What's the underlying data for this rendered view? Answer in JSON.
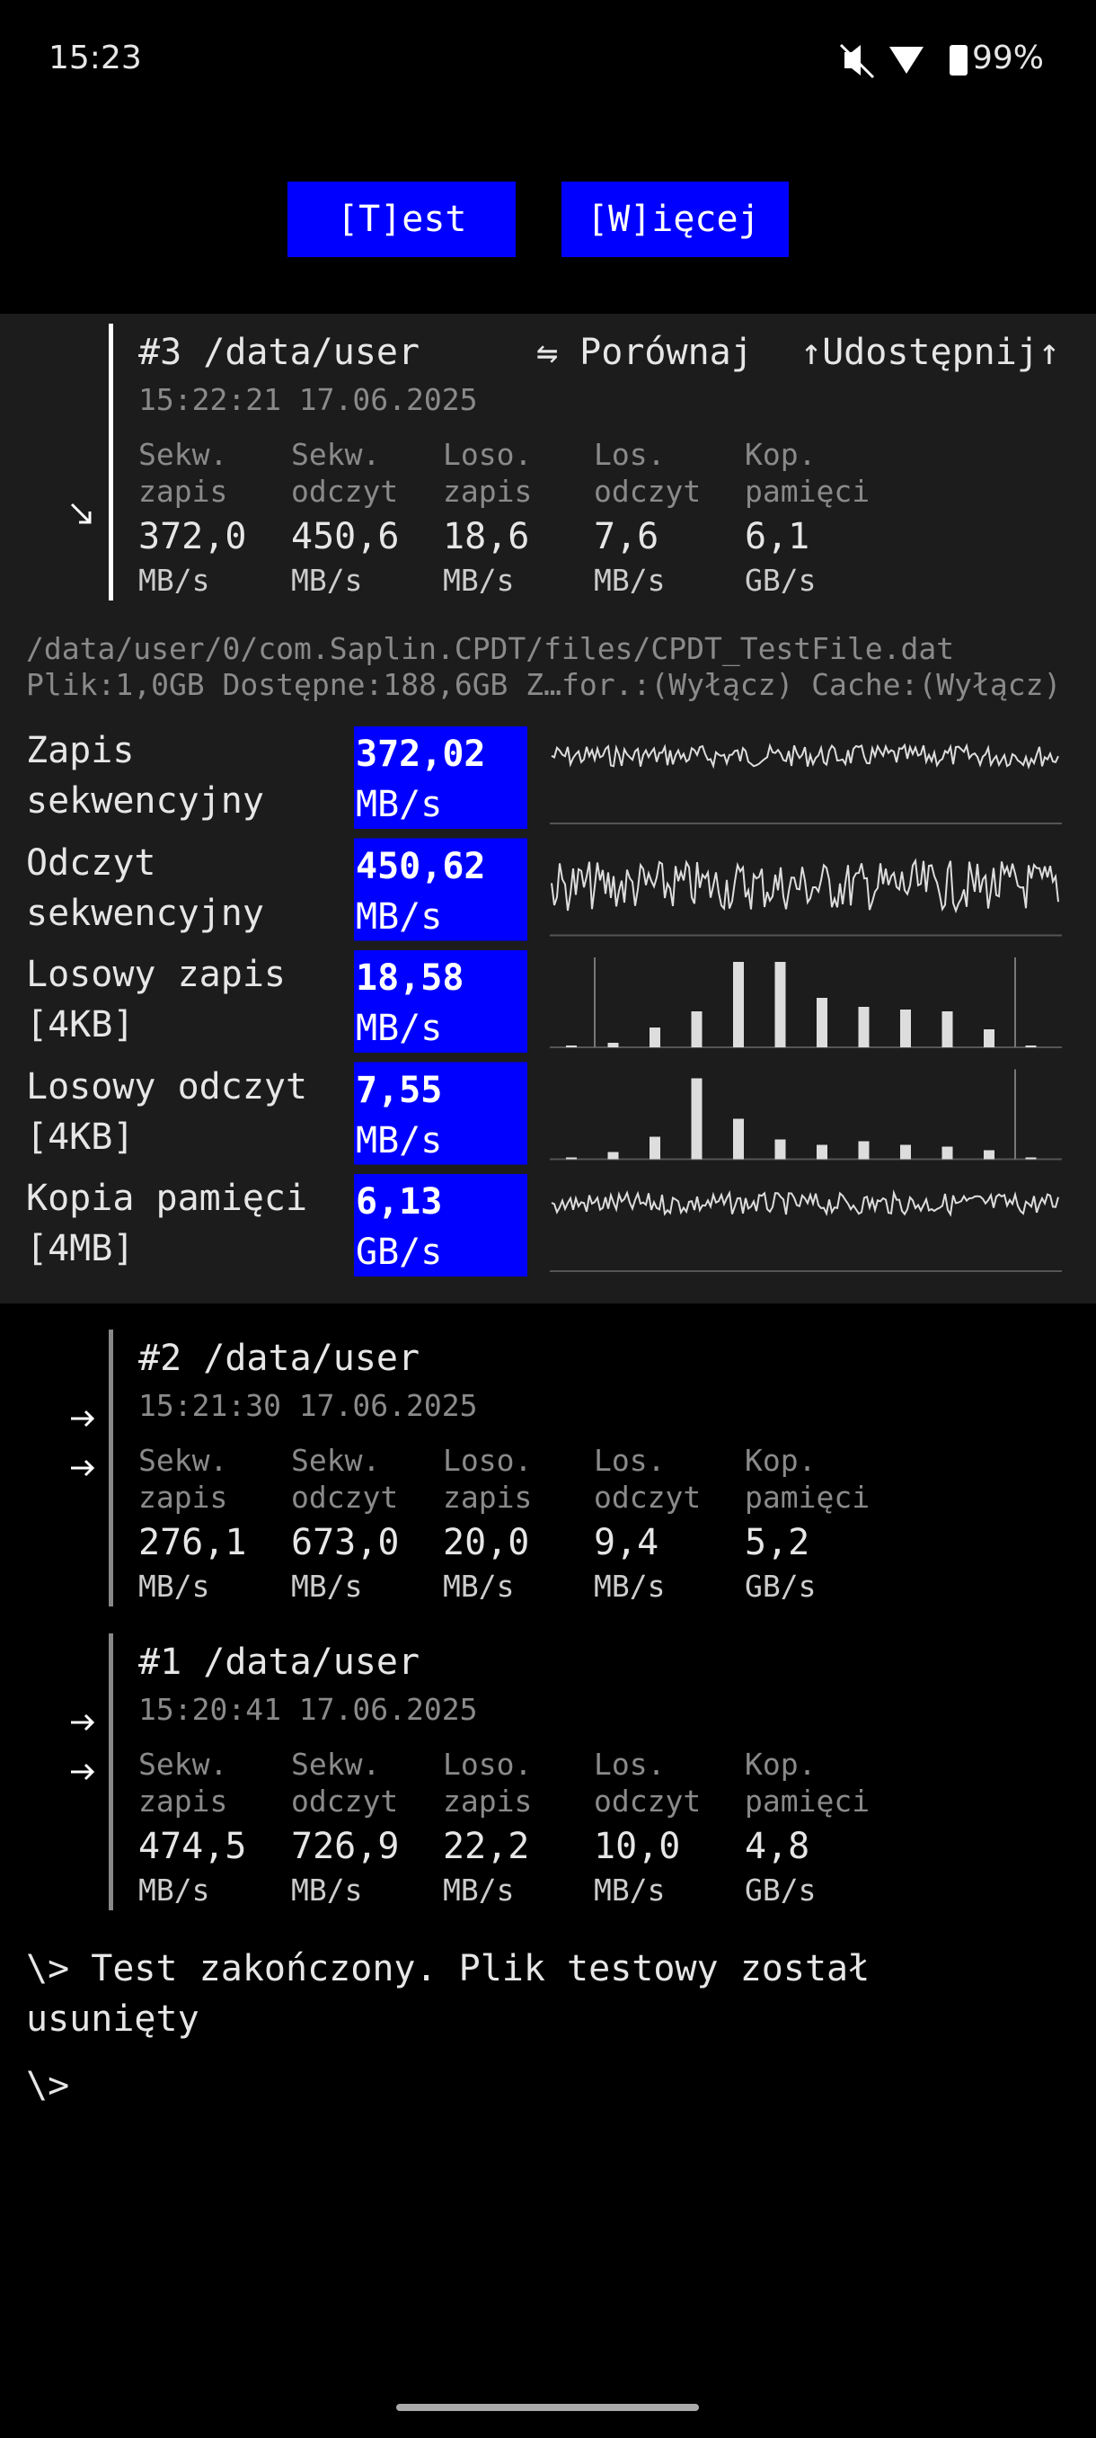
{
  "status": {
    "time": "15:23",
    "battery": "99%"
  },
  "buttons": [
    "[T]est",
    "[W]ięcej"
  ],
  "results": [
    {
      "title": "#3 /data/user",
      "date": "15:22:21 17.06.2025",
      "actions": [
        "⇋ Porównaj",
        "↑Udostępnij↑"
      ],
      "metrics": [
        {
          "name": [
            "Sekw.",
            "zapis"
          ],
          "value": "372,0",
          "unit": "MB/s"
        },
        {
          "name": [
            "Sekw.",
            "odczyt"
          ],
          "value": "450,6",
          "unit": "MB/s"
        },
        {
          "name": [
            "Loso.",
            "zapis"
          ],
          "value": "18,6",
          "unit": "MB/s"
        },
        {
          "name": [
            "Los.",
            "odczyt"
          ],
          "value": "7,6",
          "unit": "MB/s"
        },
        {
          "name": [
            "Kop.",
            "pamięci"
          ],
          "value": "6,1",
          "unit": "GB/s"
        }
      ]
    },
    {
      "title": "#2 /data/user",
      "date": "15:21:30 17.06.2025",
      "metrics": [
        {
          "name": [
            "Sekw.",
            "zapis"
          ],
          "value": "276,1",
          "unit": "MB/s"
        },
        {
          "name": [
            "Sekw.",
            "odczyt"
          ],
          "value": "673,0",
          "unit": "MB/s"
        },
        {
          "name": [
            "Loso.",
            "zapis"
          ],
          "value": "20,0",
          "unit": "MB/s"
        },
        {
          "name": [
            "Los.",
            "odczyt"
          ],
          "value": "9,4",
          "unit": "MB/s"
        },
        {
          "name": [
            "Kop.",
            "pamięci"
          ],
          "value": "5,2",
          "unit": "GB/s"
        }
      ]
    },
    {
      "title": "#1 /data/user",
      "date": "15:20:41 17.06.2025",
      "metrics": [
        {
          "name": [
            "Sekw.",
            "zapis"
          ],
          "value": "474,5",
          "unit": "MB/s"
        },
        {
          "name": [
            "Sekw.",
            "odczyt"
          ],
          "value": "726,9",
          "unit": "MB/s"
        },
        {
          "name": [
            "Loso.",
            "zapis"
          ],
          "value": "22,2",
          "unit": "MB/s"
        },
        {
          "name": [
            "Los.",
            "odczyt"
          ],
          "value": "10,0",
          "unit": "MB/s"
        },
        {
          "name": [
            "Kop.",
            "pamięci"
          ],
          "value": "4,8",
          "unit": "GB/s"
        }
      ]
    }
  ],
  "detail": {
    "path": "/data/user/0/com.Saplin.CPDT/files/CPDT_TestFile.dat",
    "info": "Plik:1,0GB Dostępne:188,6GB Z…for.:(Wyłącz) Cache:(Wyłącz)",
    "rows": [
      {
        "label": [
          "Zapis",
          "sekwencyjny"
        ],
        "value": "372,02",
        "unit": "MB/s"
      },
      {
        "label": [
          "Odczyt",
          "sekwencyjny"
        ],
        "value": "450,62",
        "unit": "MB/s"
      },
      {
        "label": [
          "Losowy zapis",
          "[4KB]"
        ],
        "value": "18,58",
        "unit": "MB/s"
      },
      {
        "label": [
          "Losowy odczyt",
          "[4KB]"
        ],
        "value": "7,55",
        "unit": "MB/s"
      },
      {
        "label": [
          "Kopia pamięci",
          "[4MB]"
        ],
        "value": "6,13",
        "unit": "GB/s"
      }
    ]
  },
  "terminal": [
    "\\> Test zakończony. Plik testowy został usunięty",
    "\\>"
  ]
}
